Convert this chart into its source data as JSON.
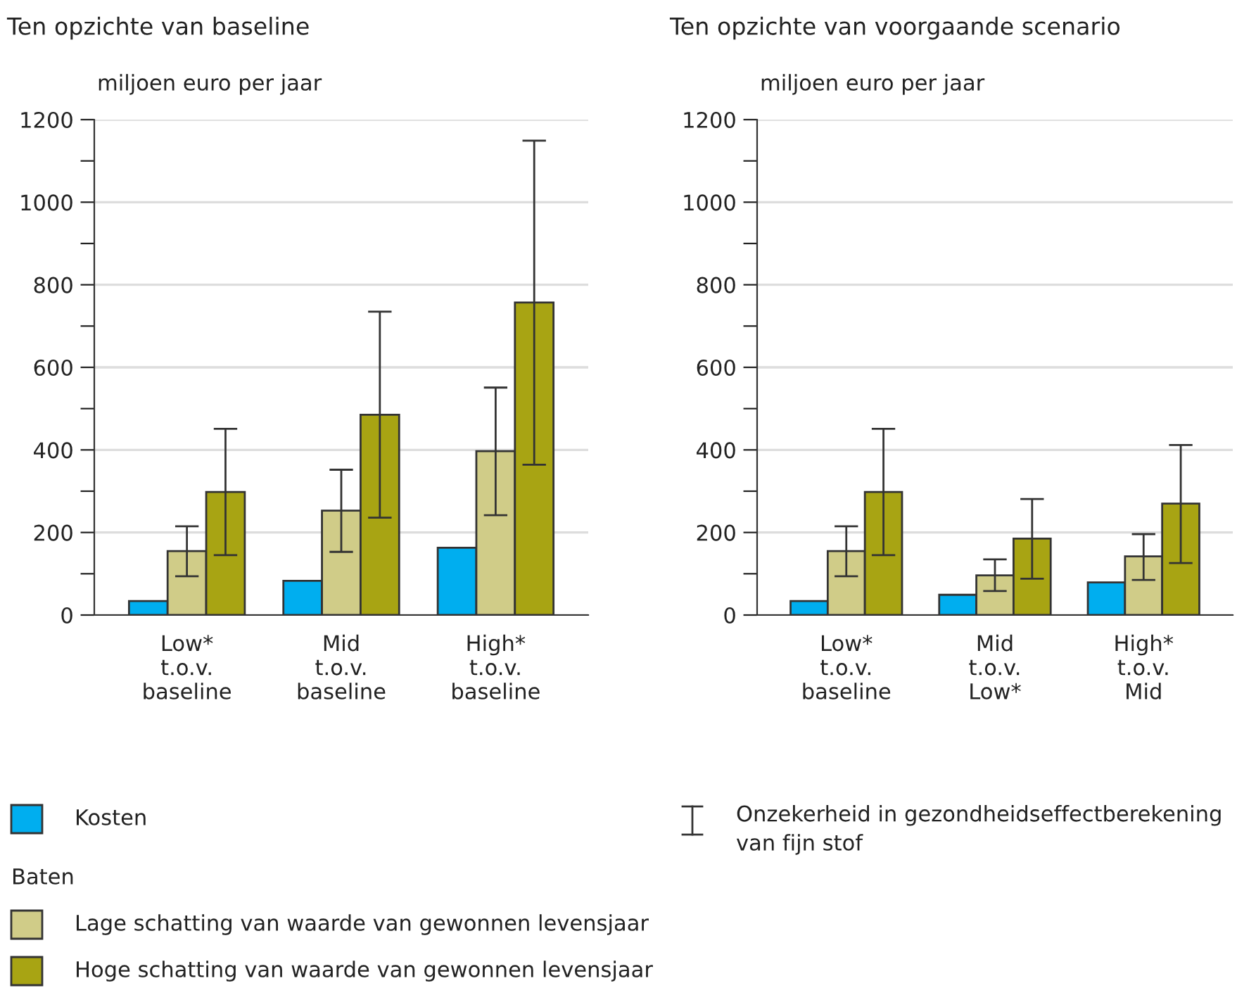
{
  "chart_data": [
    {
      "type": "bar",
      "title": "Ten opzichte van baseline",
      "ylabel": "miljoen euro per jaar",
      "categories": [
        "Low*\nt.o.v.\nbaseline",
        "Mid\nt.o.v.\nbaseline",
        "High*\nt.o.v.\nbaseline"
      ],
      "ylim": [
        0,
        1200
      ],
      "yticks": [
        0,
        {
          "value": 100,
          "label": null
        },
        200,
        {
          "value": 300,
          "label": null
        },
        400,
        {
          "value": 500,
          "label": null
        },
        600,
        {
          "value": 700,
          "label": null
        },
        800,
        {
          "value": 900,
          "label": null
        },
        1000,
        {
          "value": 1100,
          "label": null
        },
        1200
      ],
      "grid": "y",
      "legend": "bottom",
      "series": [
        {
          "name": "Kosten",
          "color": "#00aeef",
          "values": [
            34,
            83,
            163
          ]
        },
        {
          "name": "Lage schatting van waarde van gewonnen levensjaar",
          "color": "#d0cc88",
          "values": [
            155,
            253,
            397
          ],
          "errors": [
            [
              94,
              215
            ],
            [
              153,
              352
            ],
            [
              242,
              551
            ]
          ]
        },
        {
          "name": "Hoge schatting van waarde van gewonnen levensjaar",
          "color": "#a8a413",
          "values": [
            298,
            485,
            757
          ],
          "errors": [
            [
              145,
              451
            ],
            [
              236,
              735
            ],
            [
              364,
              1149
            ]
          ]
        }
      ],
      "annotations": [
        "Baten",
        "Onzekerheid in gezondheidseffectberekening\nvan fijn stof"
      ]
    },
    {
      "type": "bar",
      "title": "Ten opzichte van voorgaande scenario",
      "ylabel": "miljoen euro per jaar",
      "categories": [
        "Low*\nt.o.v.\nbaseline",
        "Mid\nt.o.v.\nLow*",
        "High*\nt.o.v.\nMid"
      ],
      "ylim": [
        0,
        1200
      ],
      "yticks": [
        0,
        {
          "value": 100,
          "label": null
        },
        200,
        {
          "value": 300,
          "label": null
        },
        400,
        {
          "value": 500,
          "label": null
        },
        600,
        {
          "value": 700,
          "label": null
        },
        800,
        {
          "value": 900,
          "label": null
        },
        1000,
        {
          "value": 1100,
          "label": null
        },
        1200
      ],
      "grid": "y",
      "series": [
        {
          "color": "#00aeef",
          "values": [
            34,
            49,
            79
          ]
        },
        {
          "color": "#d0cc88",
          "values": [
            155,
            96,
            142
          ],
          "errors": [
            [
              94,
              215
            ],
            [
              58,
              135
            ],
            [
              85,
              196
            ]
          ]
        },
        {
          "color": "#a8a413",
          "values": [
            298,
            185,
            270
          ],
          "errors": [
            [
              145,
              451
            ],
            [
              88,
              281
            ],
            [
              126,
              412
            ]
          ]
        }
      ]
    }
  ]
}
